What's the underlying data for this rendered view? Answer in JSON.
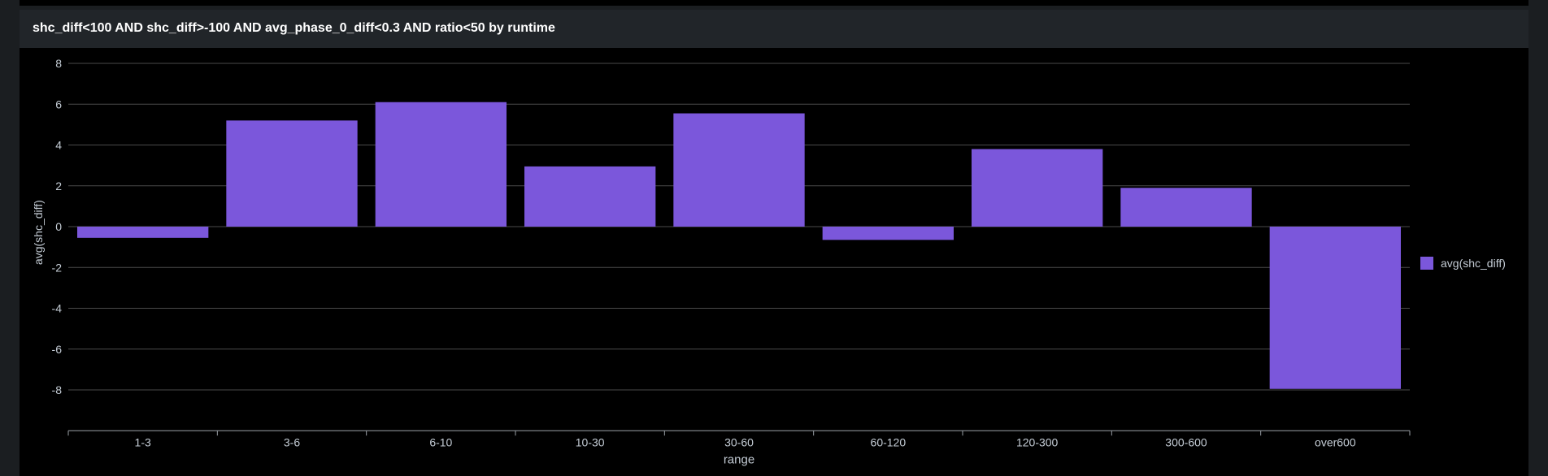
{
  "panel": {
    "title": "shc_diff<100 AND shc_diff>-100 AND avg_phase_0_diff<0.3 AND ratio<50 by runtime"
  },
  "colors": {
    "bar": "#7b57db",
    "grid": "#4a4a4a",
    "axis_text": "#c3cbd4",
    "panel_bg": "#000000",
    "header_bg": "#212529"
  },
  "chart_data": {
    "type": "bar",
    "title": "shc_diff<100 AND shc_diff>-100 AND avg_phase_0_diff<0.3 AND ratio<50 by runtime",
    "xlabel": "range",
    "ylabel": "avg(shc_diff)",
    "categories": [
      "1-3",
      "3-6",
      "6-10",
      "10-30",
      "30-60",
      "60-120",
      "120-300",
      "300-600",
      "over600"
    ],
    "series": [
      {
        "name": "avg(shc_diff)",
        "values": [
          -0.55,
          5.2,
          6.1,
          2.95,
          5.55,
          -0.65,
          3.8,
          1.9,
          -7.95
        ]
      }
    ],
    "ylim": [
      -10,
      8
    ],
    "yticks": [
      8,
      6,
      4,
      2,
      0,
      -2,
      -4,
      -6,
      -8
    ],
    "grid": true,
    "legend_position": "right"
  }
}
